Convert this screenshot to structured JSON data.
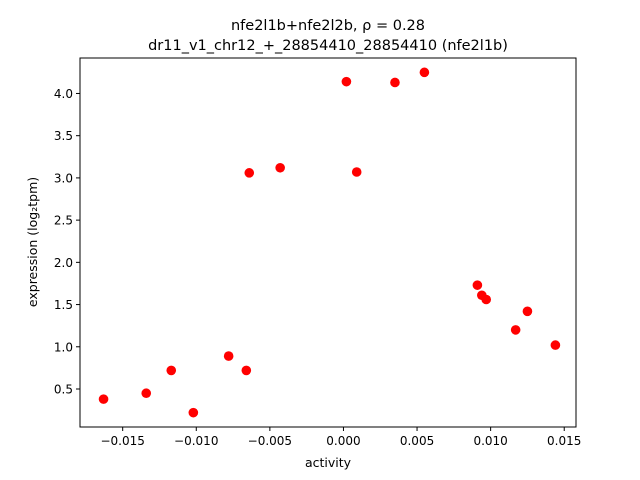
{
  "chart_data": {
    "type": "scatter",
    "title_line1": "nfe2l1b+nfe2l2b, ρ = 0.28",
    "title_line2": "dr11_v1_chr12_+_28854410_28854410 (nfe2l1b)",
    "xlabel": "activity",
    "ylabel": "expression (log₂tpm)",
    "xlim": [
      -0.0179,
      0.0158
    ],
    "ylim": [
      0.05,
      4.42
    ],
    "xticks": [
      -0.015,
      -0.01,
      -0.005,
      0.0,
      0.005,
      0.01,
      0.015
    ],
    "xtick_labels": [
      "−0.015",
      "−0.010",
      "−0.005",
      "0.000",
      "0.005",
      "0.010",
      "0.015"
    ],
    "yticks": [
      0.5,
      1.0,
      1.5,
      2.0,
      2.5,
      3.0,
      3.5,
      4.0
    ],
    "ytick_labels": [
      "0.5",
      "1.0",
      "1.5",
      "2.0",
      "2.5",
      "3.0",
      "3.5",
      "4.0"
    ],
    "grid": false,
    "marker_color": "#ff0000",
    "points": [
      {
        "x": -0.0163,
        "y": 0.38
      },
      {
        "x": -0.0134,
        "y": 0.45
      },
      {
        "x": -0.0117,
        "y": 0.72
      },
      {
        "x": -0.0102,
        "y": 0.22
      },
      {
        "x": -0.0078,
        "y": 0.89
      },
      {
        "x": -0.0066,
        "y": 0.72
      },
      {
        "x": -0.0064,
        "y": 3.06
      },
      {
        "x": -0.0043,
        "y": 3.12
      },
      {
        "x": 0.0002,
        "y": 4.14
      },
      {
        "x": 0.0009,
        "y": 3.07
      },
      {
        "x": 0.0035,
        "y": 4.13
      },
      {
        "x": 0.0055,
        "y": 4.25
      },
      {
        "x": 0.0091,
        "y": 1.73
      },
      {
        "x": 0.0094,
        "y": 1.61
      },
      {
        "x": 0.0097,
        "y": 1.56
      },
      {
        "x": 0.0117,
        "y": 1.2
      },
      {
        "x": 0.0125,
        "y": 1.42
      },
      {
        "x": 0.0144,
        "y": 1.02
      }
    ]
  }
}
